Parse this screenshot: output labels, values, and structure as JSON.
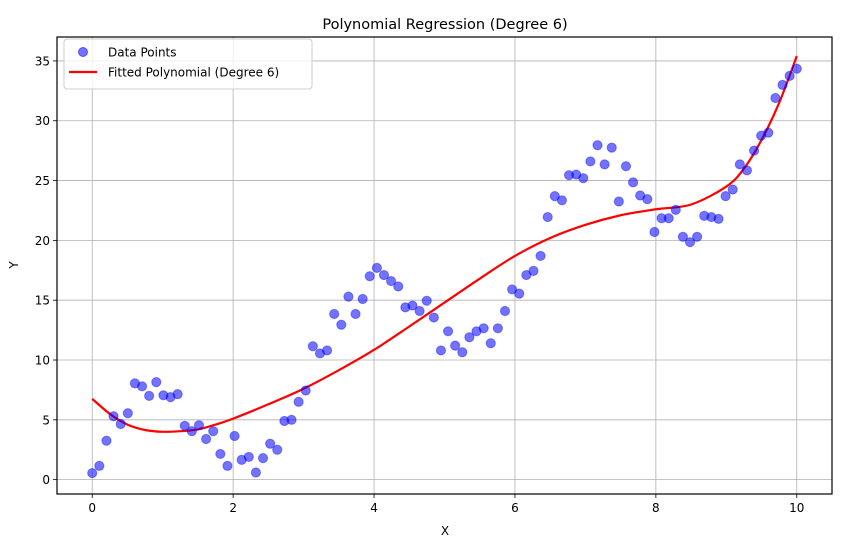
{
  "chart_data": {
    "type": "scatter",
    "title": "Polynomial Regression (Degree 6)",
    "xlabel": "X",
    "ylabel": "Y",
    "xlim": [
      -0.5,
      10.5
    ],
    "ylim": [
      -1.2,
      37
    ],
    "xticks": [
      0,
      2,
      4,
      6,
      8,
      10
    ],
    "yticks": [
      0,
      5,
      10,
      15,
      20,
      25,
      30,
      35
    ],
    "grid": true,
    "legend_position": "upper left",
    "legend": [
      {
        "label": "Data Points",
        "kind": "marker",
        "color": "#0000ff",
        "alpha": 0.55
      },
      {
        "label": "Fitted Polynomial (Degree 6)",
        "kind": "line",
        "color": "#ff0000"
      }
    ],
    "series": [
      {
        "name": "Data Points",
        "type": "scatter",
        "color": "#0000ff",
        "x_rule": "100 evenly spaced points from 0 to 10",
        "x_start": 0,
        "x_end": 10,
        "y": [
          0.55,
          1.15,
          3.25,
          5.3,
          4.65,
          5.55,
          8.05,
          7.8,
          7.0,
          8.15,
          7.05,
          6.9,
          7.15,
          4.5,
          4.05,
          4.55,
          3.4,
          4.05,
          2.15,
          1.15,
          3.65,
          1.65,
          1.9,
          0.6,
          1.8,
          3.0,
          2.5,
          4.9,
          5.0,
          6.5,
          7.45,
          11.15,
          10.55,
          10.8,
          13.85,
          12.95,
          15.3,
          13.85,
          15.1,
          17.0,
          17.7,
          17.1,
          16.6,
          16.15,
          14.4,
          14.55,
          14.1,
          14.95,
          13.55,
          10.8,
          12.4,
          11.2,
          10.65,
          11.9,
          12.4,
          12.65,
          11.4,
          12.65,
          14.1,
          15.9,
          15.55,
          17.1,
          17.45,
          18.7,
          21.95,
          23.7,
          23.35,
          25.45,
          25.5,
          25.2,
          26.6,
          27.95,
          26.35,
          27.75,
          23.25,
          26.2,
          24.85,
          23.75,
          23.45,
          20.7,
          21.85,
          21.85,
          22.55,
          20.3,
          19.85,
          20.3,
          22.05,
          21.95,
          21.8,
          23.7,
          24.25,
          26.35,
          25.85,
          27.5,
          28.75,
          29.0,
          31.9,
          33.0,
          33.75,
          34.35
        ]
      },
      {
        "name": "Fitted Polynomial (Degree 6)",
        "type": "line",
        "color": "#ff0000",
        "x": [
          0,
          0.25,
          0.5,
          0.75,
          1.0,
          1.25,
          1.5,
          1.75,
          2.0,
          2.5,
          3.0,
          3.5,
          4.0,
          4.5,
          5.0,
          5.5,
          6.0,
          6.5,
          7.0,
          7.5,
          8.0,
          8.5,
          9.0,
          9.25,
          9.5,
          9.75,
          10.0
        ],
        "y": [
          6.75,
          5.5,
          4.6,
          4.15,
          4.0,
          4.05,
          4.2,
          4.6,
          5.1,
          6.3,
          7.6,
          9.15,
          10.85,
          12.8,
          14.8,
          16.8,
          18.7,
          20.2,
          21.3,
          22.1,
          22.6,
          23.0,
          24.5,
          26.0,
          28.4,
          31.5,
          35.4
        ]
      }
    ]
  }
}
